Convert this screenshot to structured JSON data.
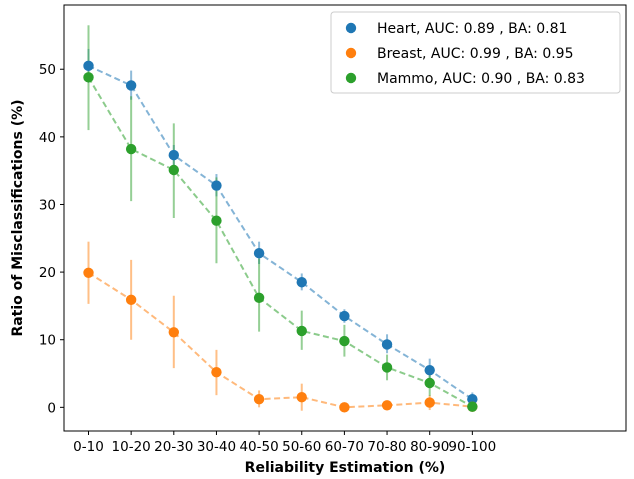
{
  "chart_data": {
    "type": "line",
    "title": "",
    "xlabel": "Reliability Estimation (%)",
    "ylabel": "Ratio of Misclassifications (%)",
    "categories": [
      "0-10",
      "10-20",
      "20-30",
      "30-40",
      "40-50",
      "50-60",
      "60-70",
      "70-80",
      "80-90",
      "90-100"
    ],
    "yticks": [
      0,
      10,
      20,
      30,
      40,
      50
    ],
    "ylim": [
      -3.5,
      59.5
    ],
    "grid": false,
    "legend_position": "top-right",
    "series": [
      {
        "name": "Heart, AUC: 0.89 , BA: 0.81",
        "color": "#1f77b4",
        "values": [
          50.5,
          47.6,
          37.3,
          32.8,
          22.8,
          18.5,
          13.5,
          9.3,
          5.5,
          1.2
        ],
        "error_low": [
          48.0,
          45.5,
          35.5,
          31.2,
          21.2,
          17.3,
          12.5,
          8.0,
          4.2,
          0.5
        ],
        "error_high": [
          53.0,
          49.8,
          38.8,
          34.5,
          24.5,
          19.8,
          14.5,
          10.8,
          7.2,
          2.2
        ]
      },
      {
        "name": "Breast, AUC: 0.99 , BA: 0.95",
        "color": "#ff7f0e",
        "values": [
          19.9,
          15.9,
          11.1,
          5.2,
          1.2,
          1.5,
          0.0,
          0.3,
          0.7,
          0.1
        ],
        "error_low": [
          15.3,
          10.0,
          5.8,
          1.8,
          0.0,
          -0.5,
          -0.3,
          -0.2,
          -0.4,
          -0.2
        ],
        "error_high": [
          24.5,
          21.8,
          16.5,
          8.5,
          2.5,
          3.5,
          0.3,
          0.8,
          1.8,
          0.4
        ]
      },
      {
        "name": "Mammo, AUC: 0.90 , BA: 0.83",
        "color": "#2ca02c",
        "values": [
          48.8,
          38.2,
          35.1,
          27.6,
          16.2,
          11.3,
          9.8,
          5.9,
          3.6,
          0.1
        ],
        "error_low": [
          41.0,
          30.5,
          28.0,
          21.3,
          11.2,
          8.5,
          7.5,
          4.0,
          1.7,
          0.0
        ],
        "error_high": [
          56.5,
          46.0,
          42.0,
          34.0,
          22.0,
          14.3,
          12.2,
          7.8,
          5.5,
          0.8
        ]
      }
    ]
  }
}
